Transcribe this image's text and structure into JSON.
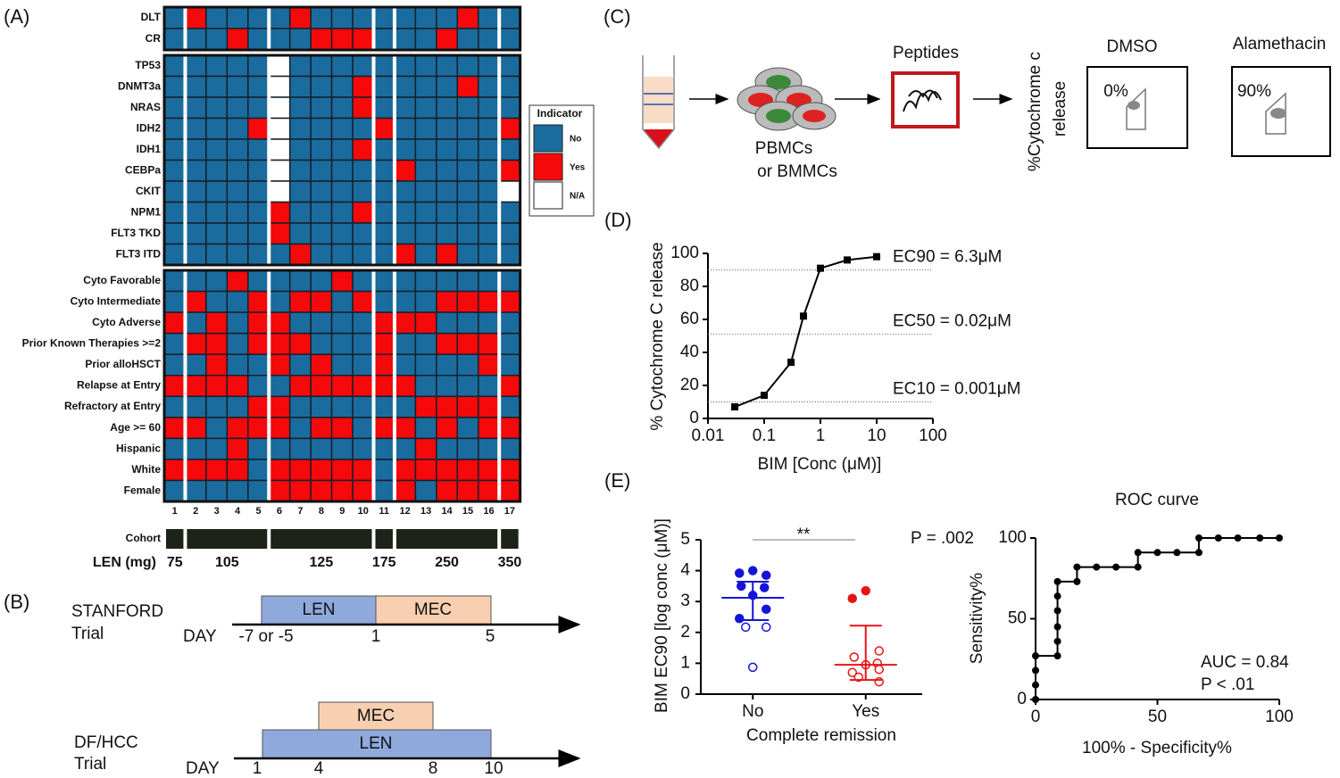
{
  "chart_data": [
    {
      "type": "heatmap",
      "label": "(A)",
      "row_groups": [
        {
          "rows": [
            {
              "label": "DLT",
              "values": [
                0,
                1,
                0,
                0,
                0,
                0,
                1,
                0,
                0,
                0,
                0,
                0,
                0,
                0,
                1,
                0,
                0
              ]
            },
            {
              "label": "CR",
              "values": [
                0,
                0,
                0,
                1,
                0,
                0,
                0,
                1,
                1,
                1,
                0,
                0,
                0,
                1,
                0,
                0,
                0
              ]
            }
          ]
        },
        {
          "rows": [
            {
              "label": "TP53",
              "values": [
                0,
                0,
                0,
                0,
                0,
                null,
                0,
                0,
                0,
                0,
                0,
                0,
                0,
                0,
                0,
                0,
                0
              ]
            },
            {
              "label": "DNMT3a",
              "values": [
                0,
                0,
                0,
                0,
                0,
                null,
                0,
                0,
                0,
                1,
                0,
                0,
                0,
                0,
                1,
                0,
                0
              ]
            },
            {
              "label": "NRAS",
              "values": [
                0,
                0,
                0,
                0,
                0,
                null,
                0,
                0,
                0,
                1,
                0,
                0,
                0,
                0,
                0,
                0,
                0
              ]
            },
            {
              "label": "IDH2",
              "values": [
                0,
                0,
                0,
                0,
                1,
                null,
                0,
                0,
                0,
                0,
                1,
                0,
                0,
                0,
                0,
                0,
                1
              ]
            },
            {
              "label": "IDH1",
              "values": [
                0,
                0,
                0,
                0,
                0,
                null,
                0,
                0,
                0,
                1,
                0,
                0,
                0,
                0,
                0,
                0,
                0
              ]
            },
            {
              "label": "CEBPa",
              "values": [
                0,
                0,
                0,
                0,
                0,
                null,
                0,
                0,
                0,
                0,
                0,
                1,
                0,
                0,
                0,
                0,
                1
              ]
            },
            {
              "label": "CKIT",
              "values": [
                0,
                0,
                0,
                0,
                0,
                null,
                0,
                0,
                0,
                0,
                0,
                0,
                0,
                0,
                0,
                0,
                null
              ]
            },
            {
              "label": "NPM1",
              "values": [
                0,
                0,
                0,
                0,
                0,
                1,
                0,
                0,
                0,
                1,
                0,
                0,
                0,
                0,
                0,
                0,
                0
              ]
            },
            {
              "label": "FLT3 TKD",
              "values": [
                0,
                0,
                0,
                0,
                0,
                1,
                0,
                0,
                0,
                0,
                0,
                0,
                0,
                0,
                0,
                0,
                0
              ]
            },
            {
              "label": "FLT3 ITD",
              "values": [
                0,
                0,
                0,
                0,
                0,
                0,
                1,
                0,
                0,
                0,
                0,
                1,
                0,
                1,
                0,
                0,
                0
              ]
            }
          ]
        },
        {
          "rows": [
            {
              "label": "Cyto Favorable",
              "values": [
                0,
                0,
                0,
                1,
                0,
                0,
                0,
                0,
                1,
                0,
                0,
                0,
                0,
                0,
                0,
                0,
                0
              ]
            },
            {
              "label": "Cyto Intermediate",
              "values": [
                0,
                1,
                0,
                0,
                1,
                0,
                1,
                1,
                0,
                1,
                0,
                0,
                0,
                1,
                1,
                1,
                1
              ]
            },
            {
              "label": "Cyto Adverse",
              "values": [
                1,
                0,
                1,
                0,
                1,
                1,
                0,
                0,
                0,
                0,
                1,
                1,
                1,
                0,
                0,
                0,
                0
              ]
            },
            {
              "label": "Prior Known Therapies >=2",
              "values": [
                0,
                1,
                1,
                0,
                1,
                1,
                1,
                0,
                0,
                0,
                1,
                0,
                0,
                1,
                1,
                1,
                0
              ]
            },
            {
              "label": "Prior alloHSCT",
              "values": [
                0,
                0,
                1,
                0,
                0,
                1,
                0,
                1,
                0,
                0,
                1,
                0,
                0,
                0,
                0,
                1,
                0
              ]
            },
            {
              "label": "Relapse at Entry",
              "values": [
                1,
                1,
                1,
                1,
                0,
                0,
                1,
                1,
                1,
                1,
                1,
                1,
                0,
                0,
                0,
                0,
                1
              ]
            },
            {
              "label": "Refractory at Entry",
              "values": [
                0,
                0,
                0,
                0,
                1,
                1,
                0,
                0,
                0,
                0,
                0,
                0,
                1,
                1,
                1,
                1,
                0
              ]
            },
            {
              "label": "Age >= 60",
              "values": [
                1,
                1,
                0,
                1,
                1,
                1,
                0,
                1,
                1,
                0,
                1,
                1,
                0,
                1,
                0,
                1,
                1
              ]
            },
            {
              "label": "Hispanic",
              "values": [
                0,
                0,
                0,
                1,
                0,
                0,
                0,
                0,
                0,
                0,
                0,
                0,
                1,
                0,
                0,
                0,
                0
              ]
            },
            {
              "label": "White",
              "values": [
                1,
                1,
                1,
                1,
                0,
                1,
                1,
                1,
                1,
                1,
                0,
                1,
                1,
                1,
                1,
                1,
                1
              ]
            },
            {
              "label": "Female",
              "values": [
                0,
                0,
                0,
                0,
                0,
                1,
                1,
                1,
                1,
                1,
                0,
                1,
                0,
                1,
                1,
                1,
                1
              ]
            }
          ]
        }
      ],
      "columns": [
        1,
        2,
        3,
        4,
        5,
        6,
        7,
        8,
        9,
        10,
        11,
        12,
        13,
        14,
        15,
        16,
        17
      ],
      "legend": {
        "title": "Indicator",
        "items": [
          {
            "label": "No",
            "color": "#1b6c9e"
          },
          {
            "label": "Yes",
            "color": "#f5090b"
          },
          {
            "label": "N/A",
            "color": "#ffffff"
          }
        ]
      },
      "cohort_label": "Cohort",
      "dose_label": "LEN (mg)",
      "cohorts": [
        {
          "dose": 75,
          "first": 1,
          "last": 1
        },
        {
          "dose": 105,
          "first": 2,
          "last": 5
        },
        {
          "dose": 125,
          "first": 6,
          "last": 10
        },
        {
          "dose": 175,
          "first": 11,
          "last": 11
        },
        {
          "dose": 250,
          "first": 12,
          "last": 16
        },
        {
          "dose": 350,
          "first": 17,
          "last": 17
        }
      ]
    },
    {
      "type": "line",
      "label": "(D)",
      "xscale": "log",
      "color": "#000000",
      "x": [
        0.03,
        0.1,
        0.3,
        0.5,
        1,
        3,
        10
      ],
      "values": [
        7,
        14,
        34,
        62,
        91,
        96,
        98
      ],
      "xlim": [
        0.01,
        100
      ],
      "xticks": [
        0.01,
        0.1,
        1,
        10,
        100
      ],
      "ylim": [
        0,
        100
      ],
      "yticks": [
        0,
        20,
        40,
        60,
        80,
        100
      ],
      "xlabel": "BIM [Conc (μM)]",
      "ylabel": "% Cytochrome C release",
      "reference_lines": [
        {
          "value": 90,
          "label": "EC90 = 6.3μM"
        },
        {
          "value": 51,
          "label": "EC50 = 0.02μM"
        },
        {
          "value": 10,
          "label": "EC10 = 0.001μM"
        }
      ]
    },
    {
      "type": "strip",
      "label": "(E)",
      "categories": [
        "No",
        "Yes"
      ],
      "groups": [
        {
          "color": "#1414d8",
          "values": [
            4.0,
            3.92,
            3.85,
            3.5,
            3.45,
            3.2,
            2.75,
            2.45,
            2.17,
            2.17,
            0.87
          ],
          "filled": [
            true,
            true,
            true,
            true,
            true,
            true,
            true,
            true,
            false,
            false,
            false
          ],
          "median": 3.12,
          "q1": 2.4,
          "q3": 3.64
        },
        {
          "color": "#e81414",
          "values": [
            3.35,
            3.1,
            1.4,
            1.2,
            1.0,
            0.95,
            0.8,
            0.7,
            0.55,
            0.4
          ],
          "filled": [
            true,
            true,
            false,
            false,
            false,
            false,
            false,
            false,
            false,
            false
          ],
          "median": 0.95,
          "q1": 0.46,
          "q3": 2.22
        }
      ],
      "ylim": [
        0,
        5
      ],
      "yticks": [
        0,
        1,
        2,
        3,
        4,
        5
      ],
      "xlabel": "Complete remission",
      "ylabel": "BIM EC90 [log conc (μM)]",
      "annotations": [
        "**",
        "P = .002"
      ]
    },
    {
      "type": "line",
      "title": "ROC curve",
      "color": "#000000",
      "x": [
        0,
        0,
        0,
        0,
        9,
        9,
        9,
        9,
        9,
        9,
        17,
        17,
        25,
        33,
        42,
        42,
        50,
        58,
        67,
        67,
        75,
        83,
        92,
        100
      ],
      "values": [
        0,
        9,
        18,
        27,
        27,
        36,
        45,
        55,
        64,
        73,
        73,
        82,
        82,
        82,
        82,
        91,
        91,
        91,
        91,
        100,
        100,
        100,
        100,
        100
      ],
      "xlim": [
        0,
        100
      ],
      "xticks": [
        0,
        50,
        100
      ],
      "ylim": [
        0,
        100
      ],
      "yticks": [
        0,
        50,
        100
      ],
      "xlabel": "100% - Specificity%",
      "ylabel": "Sensitivity%",
      "annotations": [
        "AUC = 0.84",
        "P < .01"
      ]
    }
  ],
  "diagrams": {
    "B": {
      "label": "(B)",
      "trials": [
        {
          "name": "STANFORD",
          "subtitle": "Trial",
          "day_label": "DAY",
          "bars": [
            "LEN",
            "MEC"
          ],
          "days": [
            "-7 or -5",
            1,
            5
          ]
        },
        {
          "name": "DF/HCC",
          "subtitle": "Trial",
          "day_label": "DAY",
          "bars": [
            "MEC",
            "LEN"
          ],
          "days": [
            1,
            4,
            8,
            10
          ]
        }
      ]
    },
    "C": {
      "label": "(C)",
      "cells": [
        "PBMCs",
        "or BMMCs"
      ],
      "peptides": "Peptides",
      "readout": [
        "%Cytochrome c",
        "release"
      ],
      "controls": [
        {
          "name": "DMSO",
          "value": "0%"
        },
        {
          "name": "Alamethacin",
          "value": "90%"
        }
      ]
    }
  }
}
